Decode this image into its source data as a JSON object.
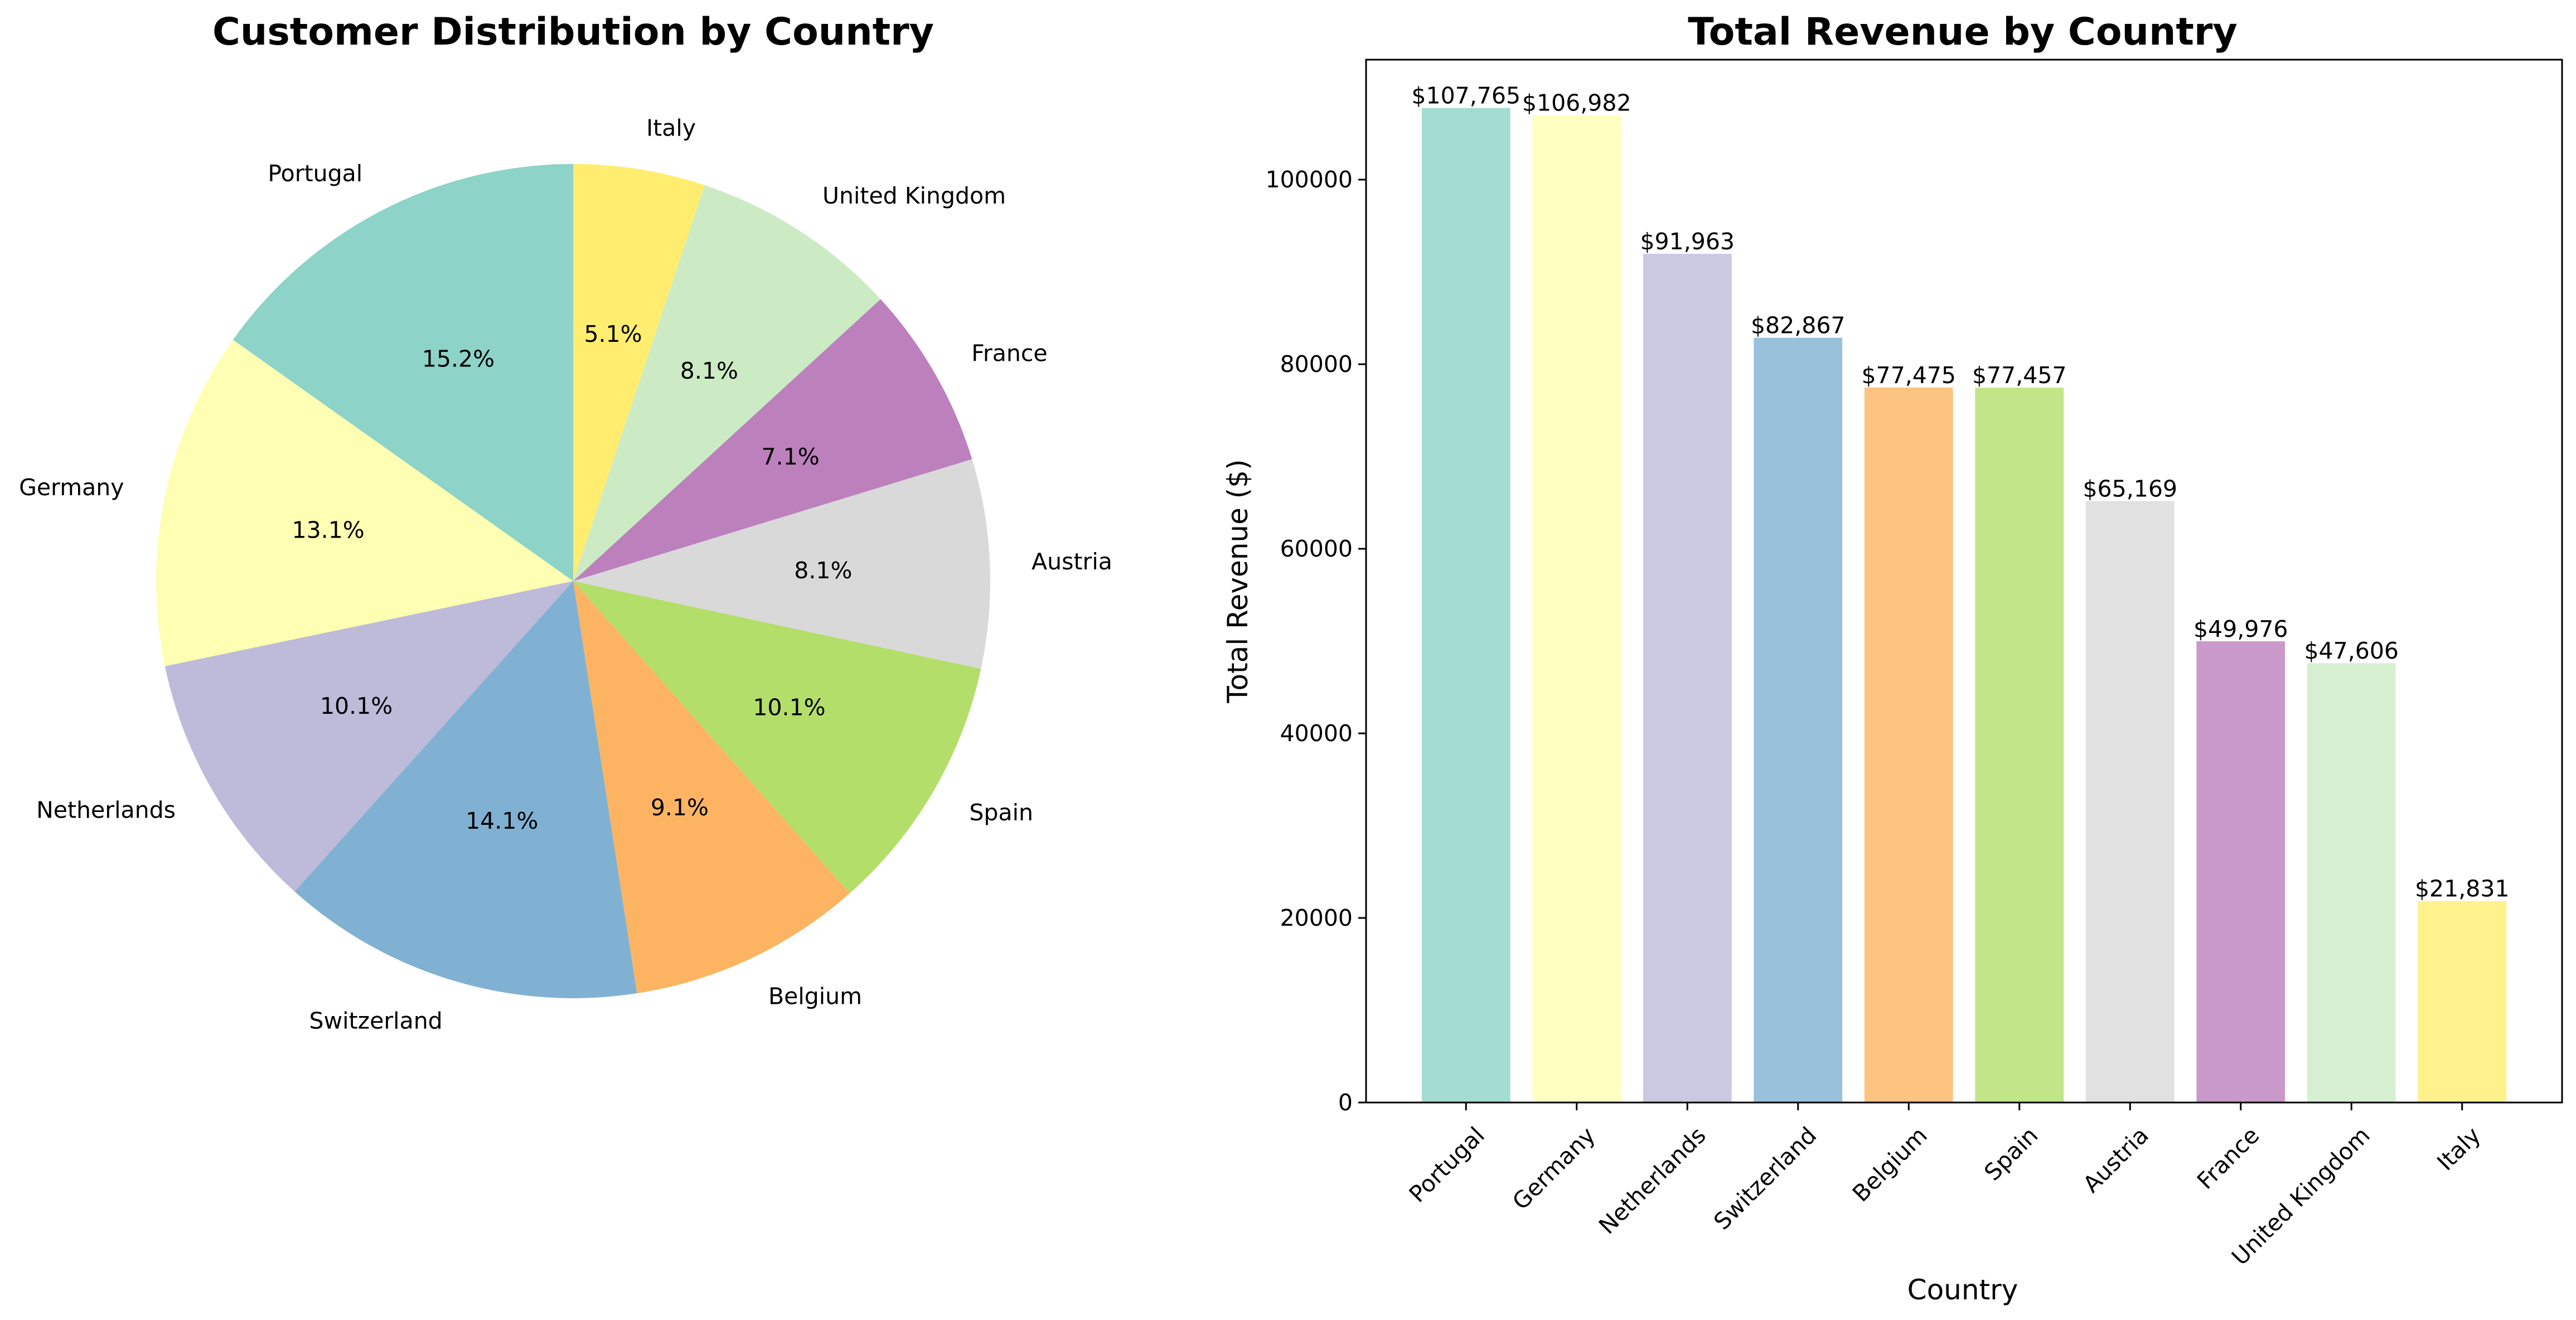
{
  "chart_data": [
    {
      "type": "pie",
      "title": "Customer Distribution by Country",
      "start_angle_deg": 90,
      "direction": "counterclockwise",
      "slices": [
        {
          "label": "Portugal",
          "value": 15.2,
          "pct_label": "15.2%",
          "color": "#8dd3c7"
        },
        {
          "label": "Germany",
          "value": 13.1,
          "pct_label": "13.1%",
          "color": "#ffffb3"
        },
        {
          "label": "Netherlands",
          "value": 10.1,
          "pct_label": "10.1%",
          "color": "#bebada"
        },
        {
          "label": "Switzerland",
          "value": 14.1,
          "pct_label": "14.1%",
          "color": "#80b1d3"
        },
        {
          "label": "Belgium",
          "value": 9.1,
          "pct_label": "9.1%",
          "color": "#fdb462"
        },
        {
          "label": "Spain",
          "value": 10.1,
          "pct_label": "10.1%",
          "color": "#b3de69"
        },
        {
          "label": "Austria",
          "value": 8.1,
          "pct_label": "8.1%",
          "color": "#d9d9d9"
        },
        {
          "label": "France",
          "value": 7.1,
          "pct_label": "7.1%",
          "color": "#bc80bd"
        },
        {
          "label": "United Kingdom",
          "value": 8.1,
          "pct_label": "8.1%",
          "color": "#ccebc5"
        },
        {
          "label": "Italy",
          "value": 5.1,
          "pct_label": "5.1%",
          "color": "#ffed6f"
        }
      ]
    },
    {
      "type": "bar",
      "title": "Total Revenue by Country",
      "xlabel": "Country",
      "ylabel": "Total Revenue ($)",
      "ylim": [
        0,
        113000
      ],
      "yticks": [
        {
          "value": 0,
          "label": "0"
        },
        {
          "value": 20000,
          "label": "20000"
        },
        {
          "value": 40000,
          "label": "40000"
        },
        {
          "value": 60000,
          "label": "60000"
        },
        {
          "value": 80000,
          "label": "80000"
        },
        {
          "value": 100000,
          "label": "100000"
        }
      ],
      "grid": false,
      "categories": [
        "Portugal",
        "Germany",
        "Netherlands",
        "Switzerland",
        "Belgium",
        "Spain",
        "Austria",
        "France",
        "United Kingdom",
        "Italy"
      ],
      "values": [
        107765,
        106982,
        91963,
        82867,
        77475,
        77457,
        65169,
        49976,
        47606,
        21831
      ],
      "value_labels": [
        "$107,765",
        "$106,982",
        "$91,963",
        "$82,867",
        "$77,475",
        "$77,457",
        "$65,169",
        "$49,976",
        "$47,606",
        "$21,831"
      ],
      "colors": [
        "#8dd3c7",
        "#ffffb3",
        "#bebada",
        "#80b1d3",
        "#fdb462",
        "#b3de69",
        "#d9d9d9",
        "#bc80bd",
        "#ccebc5",
        "#ffed6f"
      ],
      "bar_opacity": 0.8
    }
  ]
}
